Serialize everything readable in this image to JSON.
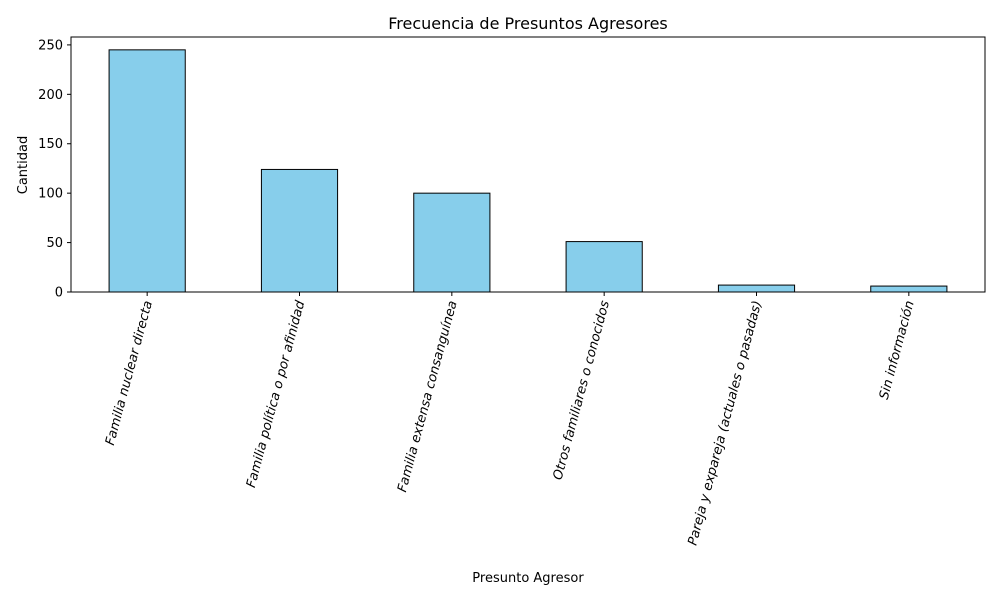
{
  "chart_data": {
    "type": "bar",
    "title": "Frecuencia de Presuntos Agresores",
    "xlabel": "Presunto Agresor",
    "ylabel": "Cantidad",
    "categories": [
      "Familia nuclear directa",
      "Familia política o por afinidad",
      "Familia extensa consanguínea",
      "Otros familiares o conocidos",
      "Pareja y expareja (actuales o pasadas)",
      "Sin información"
    ],
    "values": [
      245,
      124,
      100,
      51,
      7,
      6
    ],
    "ylim": [
      0,
      258
    ],
    "yticks": [
      0,
      50,
      100,
      150,
      200,
      250
    ],
    "grid": false,
    "legend": "none",
    "colors": {
      "bar_fill": "#87ceeb",
      "bar_edge": "#000000"
    }
  }
}
